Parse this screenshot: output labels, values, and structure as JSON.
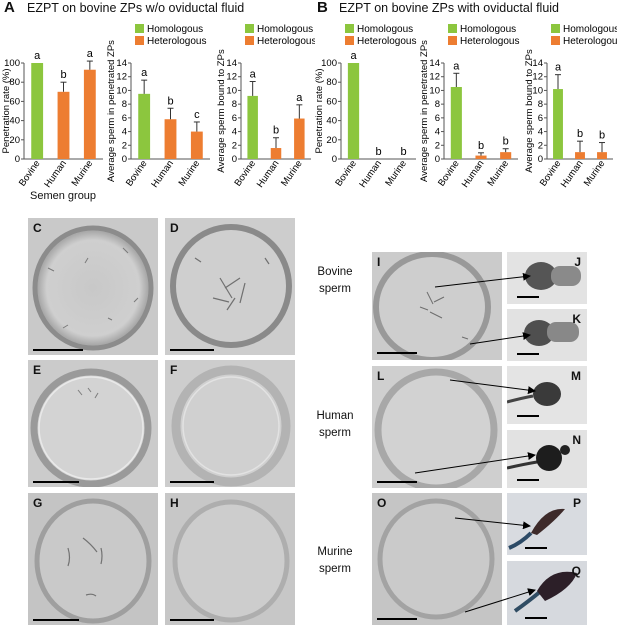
{
  "panel_A": {
    "label": "A",
    "title": "EZPT on bovine ZPs w/o oviductal fluid"
  },
  "panel_B": {
    "label": "B",
    "title": "EZPT on bovine ZPs with oviductal fluid"
  },
  "legend": {
    "homologous": "Homologous",
    "heterologous": "Heterologous"
  },
  "colors": {
    "homologous": "#8cc63e",
    "heterologous": "#ed7d31"
  },
  "xaxis_title": "Semen group",
  "image_panels": {
    "C": "C",
    "D": "D",
    "E": "E",
    "F": "F",
    "G": "G",
    "H": "H",
    "I": "I",
    "J": "J",
    "K": "K",
    "L": "L",
    "M": "M",
    "N": "N",
    "O": "O",
    "P": "P",
    "Q": "Q"
  },
  "row_labels": {
    "bovine": [
      "Bovine",
      "sperm"
    ],
    "human": [
      "Human",
      "sperm"
    ],
    "murine": [
      "Murine",
      "sperm"
    ]
  },
  "chart_data": [
    {
      "type": "bar",
      "panel": "A",
      "categories": [
        "Bovine",
        "Human",
        "Murine"
      ],
      "values": [
        100,
        70,
        93
      ],
      "errors": [
        0,
        10,
        9
      ],
      "letters": [
        "a",
        "b",
        "a"
      ],
      "ylabel": "Penetration rate (%)",
      "ylim": [
        0,
        100
      ],
      "yticks": [
        0,
        20,
        40,
        60,
        80,
        100
      ],
      "xlabel": "Semen group",
      "legend": "none"
    },
    {
      "type": "bar",
      "panel": "A",
      "categories": [
        "Bovine",
        "Human",
        "Murine"
      ],
      "values": [
        9.5,
        5.8,
        4.0
      ],
      "errors": [
        2.0,
        1.6,
        1.4
      ],
      "letters": [
        "a",
        "b",
        "c"
      ],
      "ylabel": "Average sperm in penetrated ZPs",
      "ylim": [
        0,
        14
      ],
      "yticks": [
        0,
        2,
        4,
        6,
        8,
        10,
        12,
        14
      ],
      "legend": "top"
    },
    {
      "type": "bar",
      "panel": "A",
      "categories": [
        "Bovine",
        "Human",
        "Murine"
      ],
      "values": [
        9.2,
        1.6,
        5.9
      ],
      "errors": [
        2.1,
        1.5,
        2.0
      ],
      "letters": [
        "a",
        "b",
        "a"
      ],
      "ylabel": "Average sperm bound to ZPs",
      "ylim": [
        0,
        14
      ],
      "yticks": [
        0,
        2,
        4,
        6,
        8,
        10,
        12,
        14
      ],
      "legend": "top"
    },
    {
      "type": "bar",
      "panel": "B",
      "categories": [
        "Bovine",
        "Human",
        "Murine"
      ],
      "values": [
        100,
        0,
        0
      ],
      "errors": [
        0,
        0,
        0
      ],
      "letters": [
        "a",
        "b",
        "b"
      ],
      "ylabel": "Penetration rate (%)",
      "ylim": [
        0,
        100
      ],
      "yticks": [
        0,
        20,
        40,
        60,
        80,
        100
      ],
      "legend": "top"
    },
    {
      "type": "bar",
      "panel": "B",
      "categories": [
        "Bovine",
        "Human",
        "Murine"
      ],
      "values": [
        10.5,
        0.5,
        1.0
      ],
      "errors": [
        2.0,
        0.4,
        0.5
      ],
      "letters": [
        "a",
        "b",
        "b"
      ],
      "ylabel": "Average sperm in penetrated ZPs",
      "ylim": [
        0,
        14
      ],
      "yticks": [
        0,
        2,
        4,
        6,
        8,
        10,
        12,
        14
      ],
      "legend": "top"
    },
    {
      "type": "bar",
      "panel": "B",
      "categories": [
        "Bovine",
        "Human",
        "Murine"
      ],
      "values": [
        10.2,
        1.0,
        1.0
      ],
      "errors": [
        2.1,
        1.6,
        1.4
      ],
      "letters": [
        "a",
        "b",
        "b"
      ],
      "ylabel": "Average sperm bound to ZPs",
      "ylim": [
        0,
        14
      ],
      "yticks": [
        0,
        2,
        4,
        6,
        8,
        10,
        12,
        14
      ],
      "legend": "top"
    }
  ]
}
